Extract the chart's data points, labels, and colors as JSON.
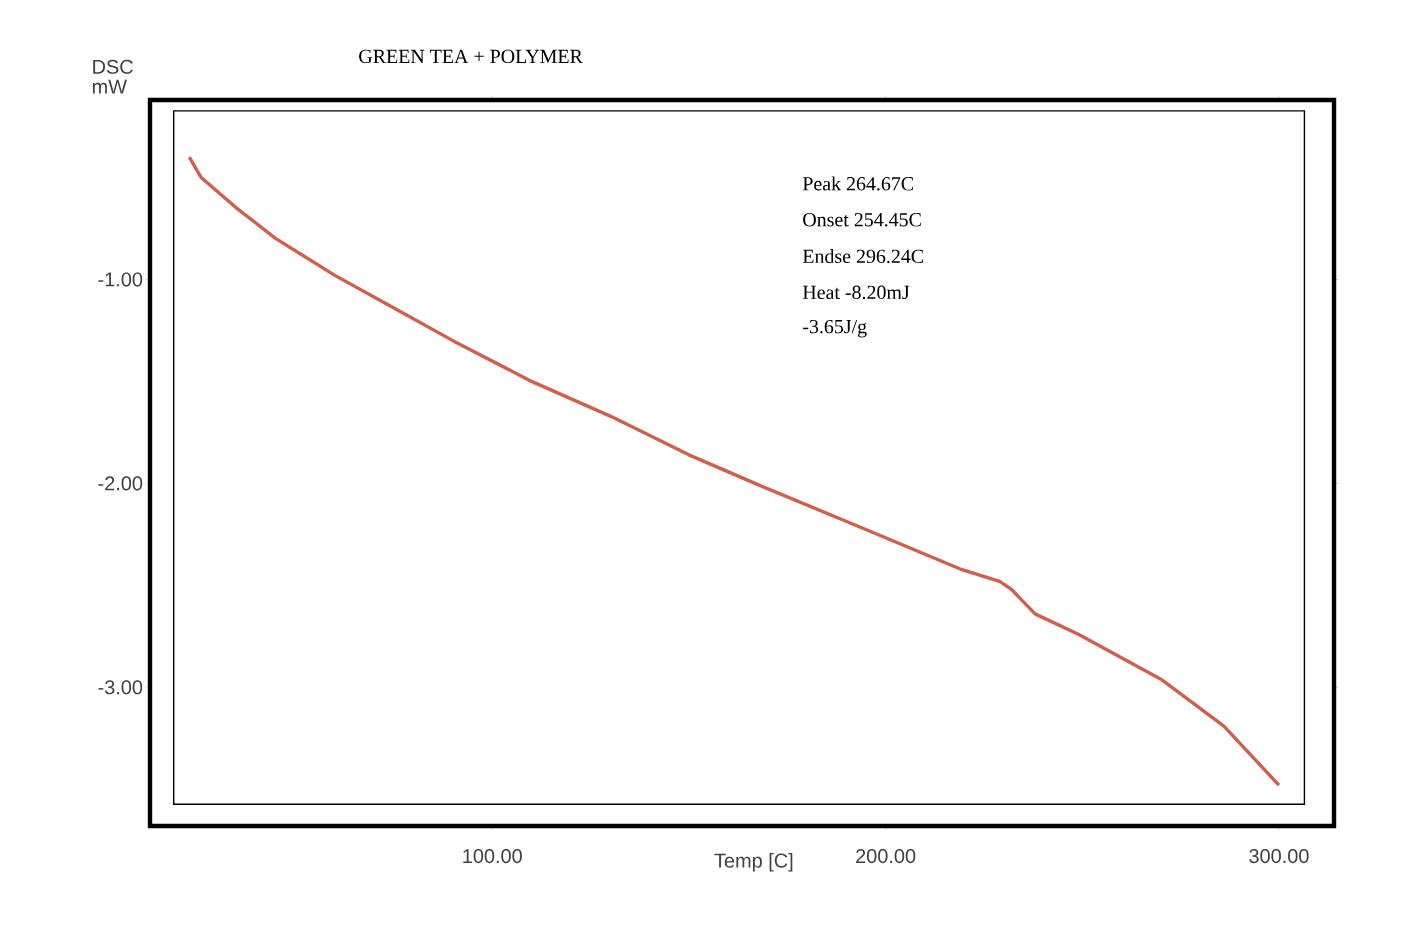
{
  "chart_data": {
    "type": "line",
    "title": "GREEN TEA + POLYMER",
    "xlabel": "Temp [C]",
    "ylabel": "DSC mW",
    "x": [
      23,
      26,
      35,
      45,
      60,
      75,
      90,
      110,
      130,
      150,
      168,
      193,
      219,
      229,
      232,
      238,
      249,
      270,
      286,
      300
    ],
    "series": [
      {
        "color": "#d0604e",
        "values": [
          -0.4,
          -0.5,
          -0.65,
          -0.8,
          -0.98,
          -1.14,
          -1.3,
          -1.5,
          -1.67,
          -1.86,
          -2.01,
          -2.21,
          -2.42,
          -2.48,
          -2.52,
          -2.64,
          -2.74,
          -2.96,
          -3.19,
          -3.48
        ]
      }
    ],
    "xlim": [
      13,
      314
    ],
    "ylim": [
      -3.68,
      -0.12
    ],
    "xticks": [
      {
        "value": 100,
        "label": "100.00"
      },
      {
        "value": 200,
        "label": "200.00"
      },
      {
        "value": 300,
        "label": "300.00"
      }
    ],
    "yticks": [
      {
        "value": -1,
        "label": "-1.00"
      },
      {
        "value": -2,
        "label": "-2.00"
      },
      {
        "value": -3,
        "label": "-3.00"
      }
    ],
    "annotations": [
      "Peak  264.67C",
      "Onset 254.45C",
      "Endse 296.24C",
      "Heat  -8.20mJ",
      "-3.65J/g"
    ],
    "grid": false,
    "marker": "none",
    "line_style": "solid"
  }
}
